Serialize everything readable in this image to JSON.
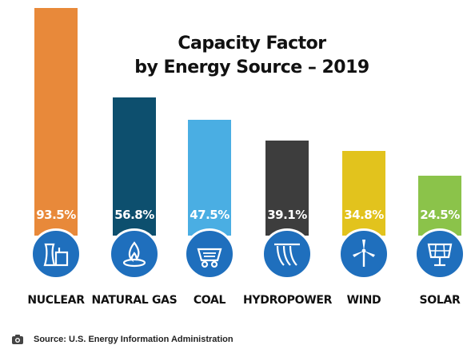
{
  "chart_data": {
    "type": "bar",
    "title_line1": "Capacity Factor",
    "title_line2": "by Energy Source – 2019",
    "categories": [
      "NUCLEAR",
      "NATURAL GAS",
      "COAL",
      "HYDROPOWER",
      "WIND",
      "SOLAR"
    ],
    "values": [
      93.5,
      56.8,
      47.5,
      39.1,
      34.8,
      24.5
    ],
    "value_labels": [
      "93.5%",
      "56.8%",
      "47.5%",
      "39.1%",
      "34.8%",
      "24.5%"
    ],
    "colors": [
      "#e8893a",
      "#0d4f6e",
      "#4aaee3",
      "#3d3d3d",
      "#e2c31d",
      "#8bc34a"
    ],
    "icons": [
      "nuclear-plant-icon",
      "gas-flame-icon",
      "coal-cart-icon",
      "dam-icon",
      "wind-turbine-icon",
      "solar-panel-icon"
    ],
    "xlabel": "",
    "ylabel": "",
    "ylim": [
      0,
      100
    ],
    "grid": false,
    "legend": "none"
  },
  "icon_circle_color": "#1f6fbd",
  "source": "Source: U.S. Energy Information Administration",
  "source_icon": "camera-icon"
}
